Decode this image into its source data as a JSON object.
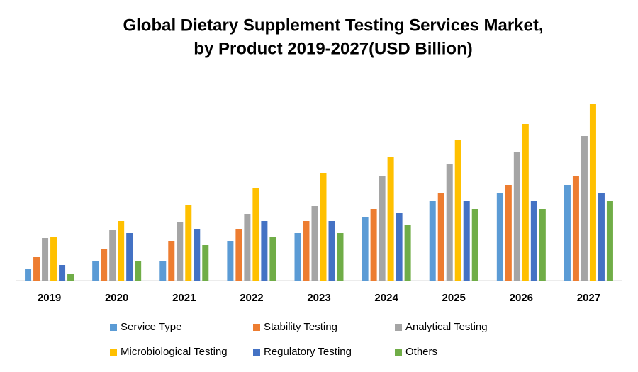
{
  "chart_data": {
    "type": "bar",
    "title": [
      "Global Dietary Supplement Testing Services Market,",
      "by Product 2019-2027(USD Billion)"
    ],
    "categories": [
      "2019",
      "2020",
      "2021",
      "2022",
      "2023",
      "2024",
      "2025",
      "2026",
      "2027"
    ],
    "series": [
      {
        "name": "Service Type",
        "color": "#5b9bd5",
        "values": [
          0.16,
          0.27,
          0.27,
          0.56,
          0.67,
          0.9,
          1.13,
          1.24,
          1.35
        ]
      },
      {
        "name": "Stability Testing",
        "color": "#ed7d31",
        "values": [
          0.33,
          0.44,
          0.56,
          0.73,
          0.84,
          1.01,
          1.24,
          1.35,
          1.47
        ]
      },
      {
        "name": "Analytical Testing",
        "color": "#a5a5a5",
        "values": [
          0.6,
          0.71,
          0.82,
          0.94,
          1.05,
          1.47,
          1.64,
          1.81,
          2.04
        ]
      },
      {
        "name": "Microbiological Testing",
        "color": "#ffc000",
        "values": [
          0.62,
          0.84,
          1.07,
          1.3,
          1.52,
          1.75,
          1.98,
          2.21,
          2.49
        ]
      },
      {
        "name": "Regulatory Testing",
        "color": "#4472c4",
        "values": [
          0.22,
          0.67,
          0.73,
          0.84,
          0.84,
          0.96,
          1.13,
          1.13,
          1.24
        ]
      },
      {
        "name": "Others",
        "color": "#70ad47",
        "values": [
          0.1,
          0.27,
          0.5,
          0.62,
          0.67,
          0.79,
          1.01,
          1.01,
          1.13
        ]
      }
    ],
    "ylim": [
      0,
      2.6
    ]
  }
}
